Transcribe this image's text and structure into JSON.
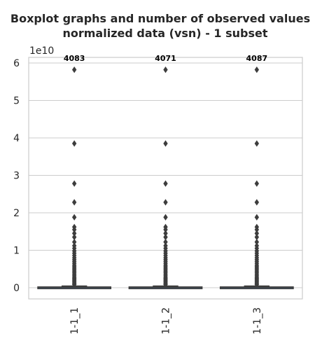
{
  "chart_data": {
    "type": "boxplot",
    "title": "Boxplot graphs and number of observed values",
    "subtitle": "normalized data (vsn) - 1 subset",
    "xlabel": "",
    "ylabel": "",
    "categories": [
      "1-1_1",
      "1-1_2",
      "1-1_3"
    ],
    "counts": [
      "4083",
      "4071",
      "4087"
    ],
    "y_offset_label": "1e10",
    "y_ticks": [
      0,
      1,
      2,
      3,
      4,
      5,
      6
    ],
    "y_tick_labels": [
      "0",
      "1",
      "2",
      "3",
      "4",
      "5",
      "6"
    ],
    "ylim": [
      -0.3,
      6.15
    ],
    "grid": true,
    "box_color": "#3f72ad",
    "flier_color": "#3d3d3d",
    "grid_color": "#cccccc",
    "boxes": [
      {
        "whisker_low": 0.0,
        "q1": 0.0,
        "median": 0.005,
        "q3": 0.02,
        "whisker_high": 0.04
      },
      {
        "whisker_low": 0.0,
        "q1": 0.0,
        "median": 0.005,
        "q3": 0.02,
        "whisker_high": 0.04
      },
      {
        "whisker_low": 0.0,
        "q1": 0.0,
        "median": 0.005,
        "q3": 0.02,
        "whisker_high": 0.04
      }
    ],
    "outliers": [
      5.82,
      3.85,
      2.78,
      2.28,
      1.88,
      1.62,
      1.55,
      1.45,
      1.35,
      1.22,
      1.12,
      1.05,
      0.98,
      0.92,
      0.86,
      0.8,
      0.75,
      0.7,
      0.65,
      0.6,
      0.56,
      0.52,
      0.48,
      0.44,
      0.4,
      0.36,
      0.32,
      0.28,
      0.25,
      0.22,
      0.19,
      0.16,
      0.13,
      0.1,
      0.08
    ]
  }
}
